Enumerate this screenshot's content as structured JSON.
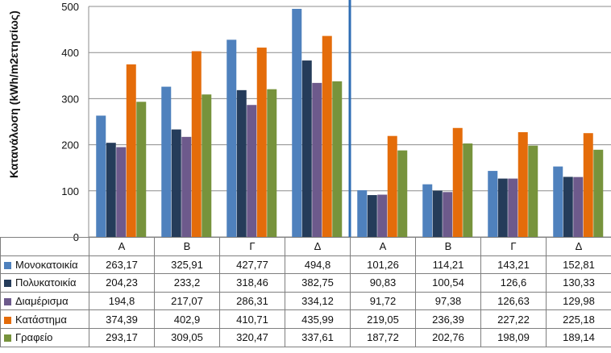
{
  "chart_data": {
    "type": "bar",
    "ylabel": "Κατανάλωση (kWh/m2ετησίως)",
    "ylim": [
      0,
      500
    ],
    "yticks": [
      0,
      100,
      200,
      300,
      400,
      500
    ],
    "categories": [
      "Α",
      "Β",
      "Γ",
      "Δ",
      "Α",
      "Β",
      "Γ",
      "Δ"
    ],
    "separator_after_category": 4,
    "grid": true,
    "legend": "table-left",
    "series": [
      {
        "name": "Μονοκατοικία",
        "color": "#4f81bd",
        "values": [
          263.17,
          325.91,
          427.77,
          494.8,
          101.26,
          114.21,
          143.21,
          152.81
        ],
        "labels": [
          "263,17",
          "325,91",
          "427,77",
          "494,8",
          "101,26",
          "114,21",
          "143,21",
          "152,81"
        ]
      },
      {
        "name": "Πολυκατοικία",
        "color": "#253c5a",
        "values": [
          204.23,
          233.2,
          318.46,
          382.75,
          90.83,
          100.54,
          126.6,
          130.33
        ],
        "labels": [
          "204,23",
          "233,2",
          "318,46",
          "382,75",
          "90,83",
          "100,54",
          "126,6",
          "130,33"
        ]
      },
      {
        "name": "Διαμέρισμα",
        "color": "#6d5a8c",
        "values": [
          194.8,
          217.07,
          286.31,
          334.12,
          91.72,
          97.38,
          126.63,
          129.98
        ],
        "labels": [
          "194,8",
          "217,07",
          "286,31",
          "334,12",
          "91,72",
          "97,38",
          "126,63",
          "129,98"
        ]
      },
      {
        "name": "Κατάστημα",
        "color": "#e46c0a",
        "values": [
          374.39,
          402.9,
          410.71,
          435.99,
          219.05,
          236.39,
          227.22,
          225.18
        ],
        "labels": [
          "374,39",
          "402,9",
          "410,71",
          "435,99",
          "219,05",
          "236,39",
          "227,22",
          "225,18"
        ]
      },
      {
        "name": "Γραφείο",
        "color": "#77933c",
        "values": [
          293.17,
          309.05,
          320.47,
          337.61,
          187.72,
          202.76,
          198.09,
          189.14
        ],
        "labels": [
          "293,17",
          "309,05",
          "320,47",
          "337,61",
          "187,72",
          "202,76",
          "198,09",
          "189,14"
        ]
      }
    ]
  }
}
